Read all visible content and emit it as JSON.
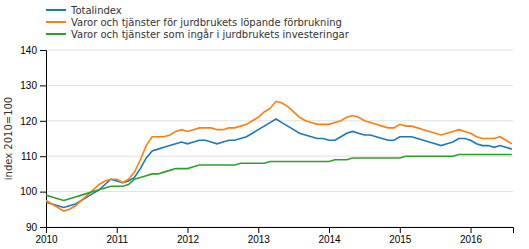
{
  "chart_data": {
    "type": "line",
    "ylabel": "index 2010=100",
    "xlim": [
      2010.0,
      2016.6
    ],
    "xticks": [
      2010,
      2011,
      2012,
      2013,
      2014,
      2015,
      2016
    ],
    "ylim": [
      90,
      140
    ],
    "yticks": [
      90,
      100,
      110,
      120,
      130,
      140
    ],
    "grid": true,
    "legend": "upper left",
    "x": [
      2010,
      2010.0833333333,
      2010.1666666667,
      2010.25,
      2010.3333333333,
      2010.4166666667,
      2010.5,
      2010.5833333333,
      2010.6666666667,
      2010.75,
      2010.8333333333,
      2010.9166666667,
      2011,
      2011.0833333333,
      2011.1666666667,
      2011.25,
      2011.3333333333,
      2011.4166666667,
      2011.5,
      2011.5833333333,
      2011.6666666667,
      2011.75,
      2011.8333333333,
      2011.9166666667,
      2012,
      2012.0833333333,
      2012.1666666667,
      2012.25,
      2012.3333333333,
      2012.4166666667,
      2012.5,
      2012.5833333333,
      2012.6666666667,
      2012.75,
      2012.8333333333,
      2012.9166666667,
      2013,
      2013.0833333333,
      2013.1666666667,
      2013.25,
      2013.3333333333,
      2013.4166666667,
      2013.5,
      2013.5833333333,
      2013.6666666667,
      2013.75,
      2013.8333333333,
      2013.9166666667,
      2014,
      2014.0833333333,
      2014.1666666667,
      2014.25,
      2014.3333333333,
      2014.4166666667,
      2014.5,
      2014.5833333333,
      2014.6666666667,
      2014.75,
      2014.8333333333,
      2014.9166666667,
      2015,
      2015.0833333333,
      2015.1666666667,
      2015.25,
      2015.3333333333,
      2015.4166666667,
      2015.5,
      2015.5833333333,
      2015.6666666667,
      2015.75,
      2015.8333333333,
      2015.9166666667,
      2016,
      2016.0833333333,
      2016.1666666667,
      2016.25,
      2016.3333333333,
      2016.4166666667,
      2016.5,
      2016.5833333333
    ],
    "series": [
      {
        "name": "Totalindex",
        "values": [
          97.0,
          96.5,
          96.0,
          95.5,
          96.0,
          96.5,
          97.5,
          98.5,
          99.5,
          100.5,
          102.0,
          103.5,
          103.0,
          102.5,
          103.0,
          104.0,
          106.5,
          109.5,
          111.5,
          112.0,
          112.5,
          113.0,
          113.5,
          114.0,
          113.5,
          114.0,
          114.5,
          114.5,
          114.0,
          113.5,
          114.0,
          114.5,
          114.5,
          115.0,
          115.5,
          116.5,
          117.5,
          118.5,
          119.5,
          120.5,
          119.5,
          118.5,
          117.5,
          116.5,
          116.0,
          115.5,
          115.0,
          115.0,
          114.5,
          114.5,
          115.5,
          116.5,
          117.0,
          116.5,
          116.0,
          116.0,
          115.5,
          115.0,
          114.5,
          114.5,
          115.5,
          115.5,
          115.5,
          115.0,
          114.5,
          114.0,
          113.5,
          113.0,
          113.5,
          114.0,
          115.0,
          115.0,
          114.5,
          113.5,
          113.0,
          113.0,
          112.5,
          113.0,
          112.5,
          112.0
        ]
      },
      {
        "name": "Varor och tjänster för jurdbrukets löpande förbrukning",
        "values": [
          97.5,
          96.5,
          95.5,
          94.5,
          95.0,
          96.0,
          97.5,
          99.0,
          100.5,
          102.0,
          103.0,
          103.5,
          103.5,
          102.5,
          103.5,
          105.5,
          109.0,
          113.0,
          115.5,
          115.5,
          115.5,
          116.0,
          117.0,
          117.5,
          117.0,
          117.5,
          118.0,
          118.0,
          118.0,
          117.5,
          117.5,
          118.0,
          118.0,
          118.5,
          119.0,
          120.0,
          121.0,
          122.5,
          123.5,
          125.5,
          125.0,
          124.0,
          122.5,
          121.0,
          120.0,
          119.5,
          119.0,
          119.0,
          119.0,
          119.5,
          120.0,
          121.0,
          121.5,
          121.0,
          120.0,
          119.5,
          119.0,
          118.5,
          118.0,
          118.0,
          119.0,
          118.5,
          118.5,
          118.0,
          117.5,
          117.0,
          116.5,
          116.0,
          116.5,
          117.0,
          117.5,
          117.0,
          116.5,
          115.5,
          115.0,
          115.0,
          115.0,
          115.5,
          114.5,
          113.5
        ]
      },
      {
        "name": "Varor och tjänster som ingår i jurdbrukets investeringar",
        "values": [
          99.0,
          98.5,
          98.0,
          97.5,
          98.0,
          98.5,
          99.0,
          99.5,
          100.0,
          100.5,
          101.0,
          101.5,
          101.5,
          101.5,
          102.0,
          103.5,
          104.0,
          104.5,
          105.0,
          105.0,
          105.5,
          106.0,
          106.5,
          106.5,
          106.5,
          107.0,
          107.5,
          107.5,
          107.5,
          107.5,
          107.5,
          107.5,
          107.5,
          108.0,
          108.0,
          108.0,
          108.0,
          108.0,
          108.5,
          108.5,
          108.5,
          108.5,
          108.5,
          108.5,
          108.5,
          108.5,
          108.5,
          108.5,
          108.5,
          109.0,
          109.0,
          109.0,
          109.5,
          109.5,
          109.5,
          109.5,
          109.5,
          109.5,
          109.5,
          109.5,
          109.5,
          110.0,
          110.0,
          110.0,
          110.0,
          110.0,
          110.0,
          110.0,
          110.0,
          110.0,
          110.5,
          110.5,
          110.5,
          110.5,
          110.5,
          110.5,
          110.5,
          110.5,
          110.5,
          110.5
        ]
      }
    ]
  }
}
